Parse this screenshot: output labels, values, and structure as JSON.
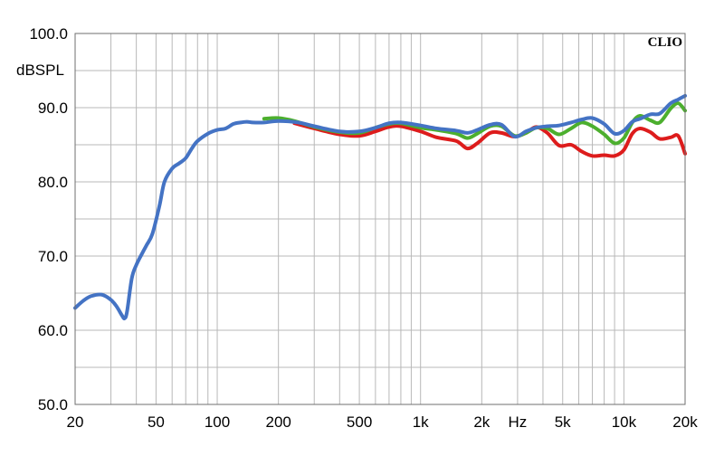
{
  "chart_data": {
    "type": "line",
    "title": "",
    "brand": "CLIO",
    "ylabel": "dBSPL",
    "xlabel": "Hz",
    "x_scale": "log",
    "xlim": [
      20,
      20000
    ],
    "ylim": [
      50,
      100
    ],
    "x_ticks": [
      {
        "value": 20,
        "label": "20"
      },
      {
        "value": 50,
        "label": "50"
      },
      {
        "value": 100,
        "label": "100"
      },
      {
        "value": 200,
        "label": "200"
      },
      {
        "value": 500,
        "label": "500"
      },
      {
        "value": 1000,
        "label": "1k"
      },
      {
        "value": 2000,
        "label": "2k"
      },
      {
        "value": 5000,
        "label": "5k"
      },
      {
        "value": 10000,
        "label": "10k"
      },
      {
        "value": 20000,
        "label": "20k"
      }
    ],
    "x_unit_label_at": 3000,
    "y_ticks": [
      {
        "value": 100,
        "label": "100.0"
      },
      {
        "value": 90,
        "label": "90.0"
      },
      {
        "value": 80,
        "label": "80.0"
      },
      {
        "value": 70,
        "label": "70.0"
      },
      {
        "value": 60,
        "label": "60.0"
      },
      {
        "value": 50,
        "label": "50.0"
      }
    ],
    "grid": true,
    "series": [
      {
        "color": "#dd1c1c",
        "x": [
          240,
          300,
          400,
          500,
          600,
          700,
          800,
          1000,
          1200,
          1500,
          1700,
          1900,
          2200,
          2500,
          2900,
          3300,
          3700,
          4200,
          4800,
          5500,
          6200,
          7000,
          8000,
          9000,
          10000,
          11000,
          12000,
          13500,
          15000,
          17000,
          18500,
          20000
        ],
        "y": [
          87.9,
          87.2,
          86.4,
          86.2,
          86.8,
          87.4,
          87.5,
          86.8,
          86.0,
          85.5,
          84.5,
          85.2,
          86.6,
          86.6,
          86.1,
          86.6,
          87.4,
          86.6,
          84.9,
          85.0,
          84.1,
          83.5,
          83.6,
          83.5,
          84.3,
          86.5,
          87.2,
          86.7,
          85.8,
          86.0,
          86.2,
          83.8
        ]
      },
      {
        "color": "#4caf2e",
        "x": [
          170,
          200,
          240,
          300,
          400,
          500,
          600,
          700,
          800,
          1000,
          1200,
          1500,
          1700,
          1900,
          2200,
          2500,
          2900,
          3300,
          3700,
          4200,
          4800,
          5500,
          6200,
          7000,
          8000,
          9000,
          10000,
          11000,
          12000,
          13500,
          15000,
          17000,
          18500,
          20000
        ],
        "y": [
          88.5,
          88.6,
          88.2,
          87.4,
          86.7,
          86.6,
          87.3,
          87.8,
          87.9,
          87.3,
          87.0,
          86.5,
          85.9,
          86.5,
          87.5,
          87.5,
          86.2,
          86.6,
          87.3,
          87.2,
          86.4,
          87.2,
          88.0,
          87.5,
          86.4,
          85.2,
          85.9,
          88.0,
          88.9,
          88.3,
          88.0,
          89.9,
          90.6,
          89.6
        ]
      },
      {
        "color": "#4473c4",
        "x": [
          20,
          22,
          24,
          27,
          30,
          32,
          34,
          35,
          36,
          38,
          40,
          43,
          45,
          48,
          52,
          55,
          60,
          65,
          70,
          75,
          80,
          90,
          100,
          110,
          120,
          130,
          140,
          150,
          170,
          200,
          250,
          300,
          400,
          500,
          600,
          700,
          800,
          1000,
          1200,
          1500,
          1700,
          1900,
          2200,
          2500,
          2900,
          3300,
          3700,
          4200,
          4800,
          5500,
          6200,
          7000,
          8000,
          9000,
          10000,
          11000,
          12000,
          13500,
          15000,
          17000,
          18500,
          20000
        ],
        "y": [
          63.0,
          64.0,
          64.6,
          64.8,
          64.1,
          63.2,
          62.0,
          61.6,
          62.5,
          67.0,
          68.8,
          70.5,
          71.5,
          73.0,
          76.8,
          80.0,
          81.8,
          82.5,
          83.2,
          84.5,
          85.5,
          86.5,
          87.0,
          87.2,
          87.8,
          88.0,
          88.1,
          88.0,
          88.0,
          88.2,
          88.0,
          87.5,
          86.8,
          86.8,
          87.3,
          87.9,
          88.0,
          87.6,
          87.2,
          86.9,
          86.6,
          87.0,
          87.7,
          87.7,
          86.1,
          86.8,
          87.3,
          87.5,
          87.6,
          88.0,
          88.4,
          88.6,
          87.8,
          86.5,
          86.9,
          88.1,
          88.5,
          89.1,
          89.2,
          90.6,
          91.1,
          91.6
        ]
      }
    ]
  }
}
